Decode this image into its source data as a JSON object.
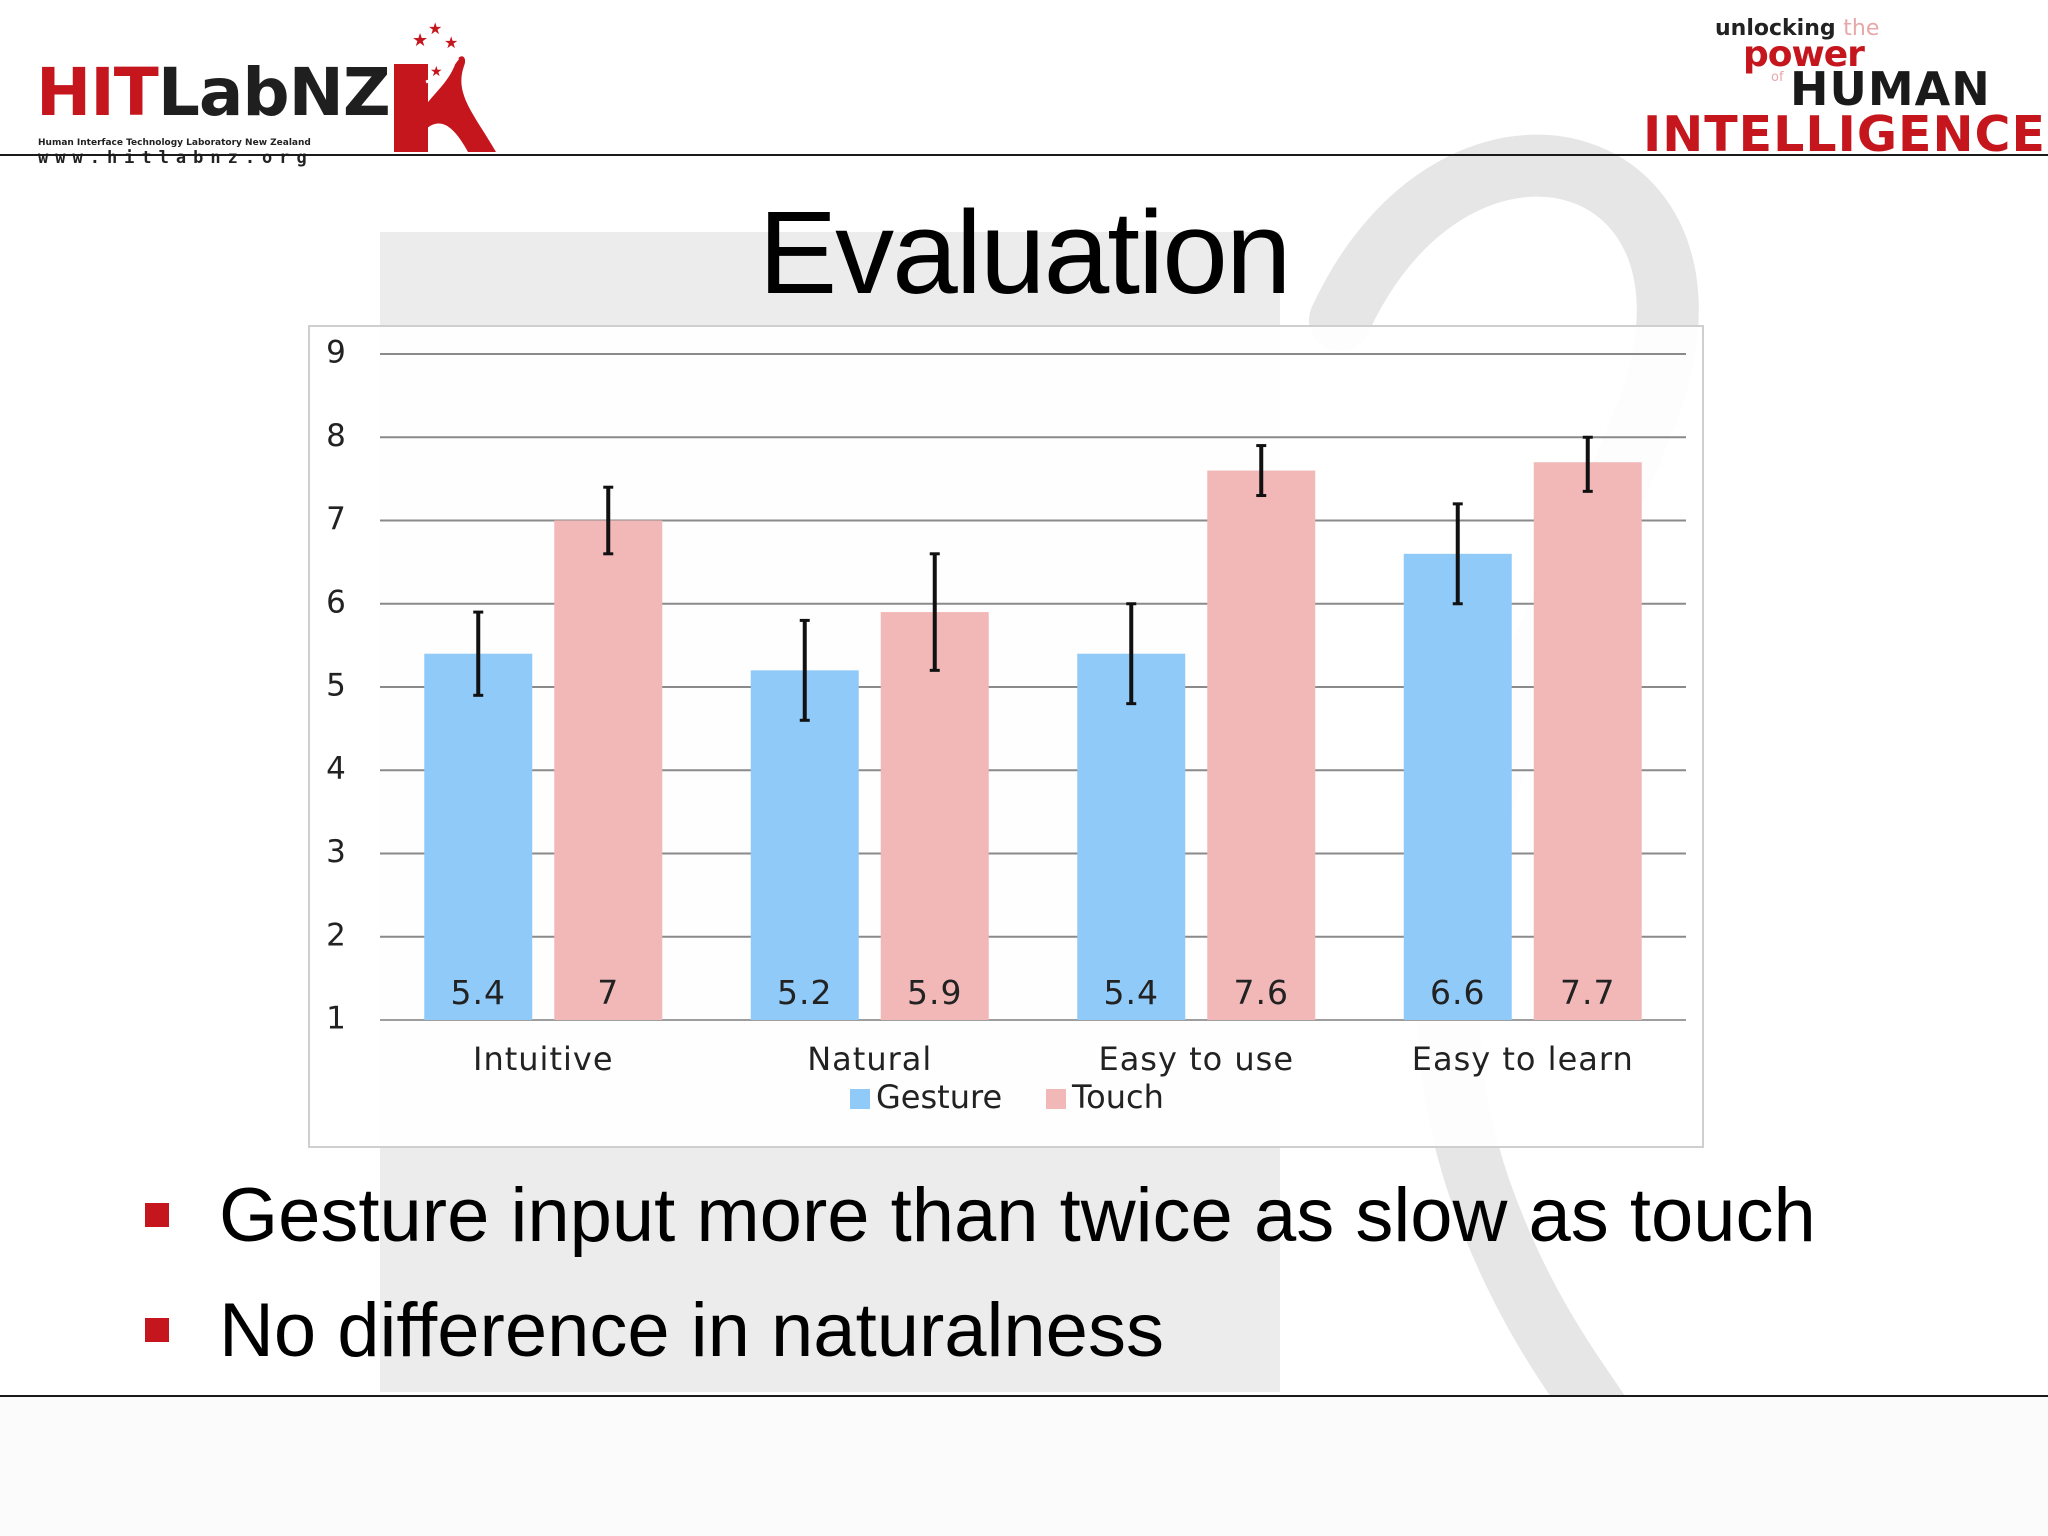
{
  "header": {
    "logo_left": {
      "hit": "HIT",
      "labnz": "LabNZ",
      "subtitle": "Human Interface Technology Laboratory New Zealand",
      "url": "www.hitlabnz.org"
    },
    "logo_right": {
      "line1_a": "unlocking",
      "line1_b": "the",
      "line2": "power",
      "line3_of": "of",
      "line3": "HUMAN",
      "line4": "INTELLIGENCE"
    }
  },
  "slide": {
    "title": "Evaluation",
    "bullets": [
      "Gesture input more than twice as slow as touch",
      "No difference in naturalness"
    ]
  },
  "colors": {
    "accent": "#c4161c",
    "gesture": "#90caf9",
    "touch": "#f2b8b8"
  },
  "chart_data": {
    "type": "bar",
    "title": "",
    "xlabel": "",
    "ylabel": "",
    "categories": [
      "Intuitive",
      "Natural",
      "Easy to use",
      "Easy to learn"
    ],
    "series": [
      {
        "name": "Gesture",
        "color": "#90caf9",
        "values": [
          5.4,
          5.2,
          5.4,
          6.6
        ],
        "error_low": [
          4.9,
          4.6,
          4.8,
          6.0
        ],
        "error_high": [
          5.9,
          5.8,
          6.0,
          7.2
        ]
      },
      {
        "name": "Touch",
        "color": "#f2b8b8",
        "values": [
          7,
          5.9,
          7.6,
          7.7
        ],
        "error_low": [
          6.6,
          5.2,
          7.3,
          7.35
        ],
        "error_high": [
          7.4,
          6.6,
          7.9,
          8.0
        ]
      }
    ],
    "data_labels": [
      [
        "5.4",
        "5.2",
        "5.4",
        "6.6"
      ],
      [
        "7",
        "5.9",
        "7.6",
        "7.7"
      ]
    ],
    "yticks": [
      "1",
      "2",
      "3",
      "4",
      "5",
      "6",
      "7",
      "8",
      "9"
    ],
    "ylim": [
      1,
      9
    ],
    "grid": true,
    "legend": "bottom"
  }
}
